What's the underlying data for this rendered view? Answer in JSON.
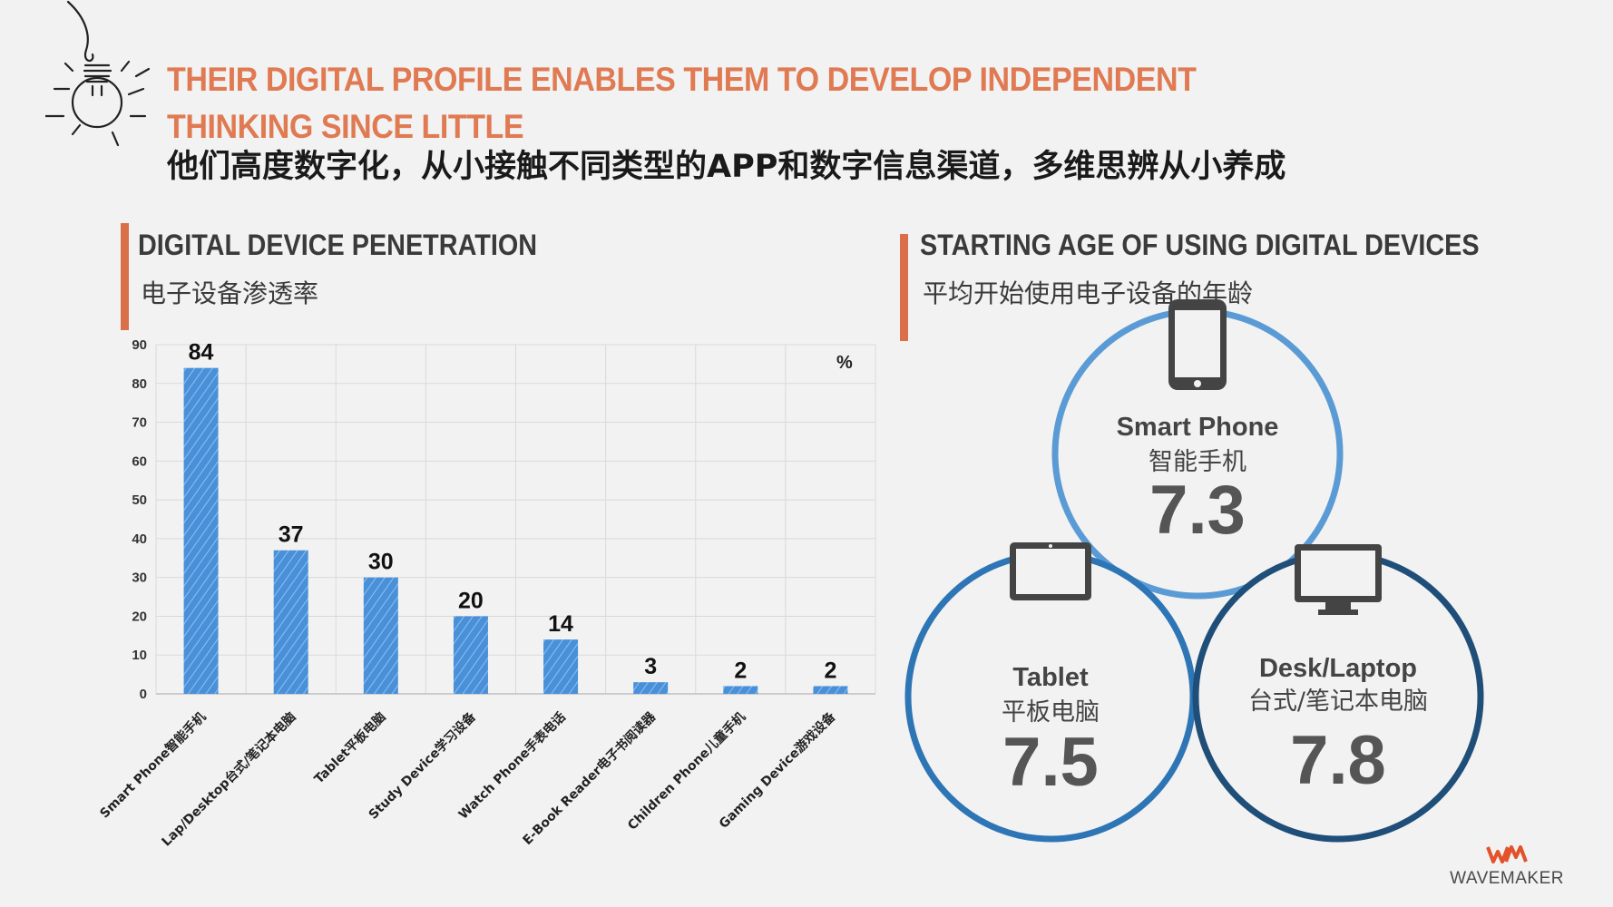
{
  "header": {
    "headline_en": "THEIR DIGITAL PROFILE ENABLES THEM TO DEVELOP INDEPENDENT THINKING SINCE LITTLE",
    "headline_cn": "他们高度数字化，从小接触不同类型的APP和数字信息渠道，多维思辨从小养成"
  },
  "left_section": {
    "title": "DIGITAL DEVICE PENETRATION",
    "subtitle": "电子设备渗透率"
  },
  "right_section": {
    "title": "STARTING AGE OF USING DIGITAL DEVICES",
    "subtitle": "平均开始使用电子设备的年龄",
    "devices": [
      {
        "label_en": "Smart Phone",
        "label_cn": "智能手机",
        "value": "7.3",
        "icon": "smartphone-icon",
        "color": "#5b9bd5"
      },
      {
        "label_en": "Tablet",
        "label_cn": "平板电脑",
        "value": "7.5",
        "icon": "tablet-icon",
        "color": "#2e75b6"
      },
      {
        "label_en": "Desk/Laptop",
        "label_cn": "台式/笔记本电脑",
        "value": "7.8",
        "icon": "desktop-icon",
        "color": "#1f4e79"
      }
    ]
  },
  "chart_data": {
    "type": "bar",
    "categories": [
      "Smart Phone智能手机",
      "Lap/Desktop台式/笔记本电脑",
      "Tablet平板电脑",
      "Study Device学习设备",
      "Watch Phone手表电话",
      "E-Book Reader电子书阅读器",
      "Children Phone儿童手机",
      "Gaming Device游戏设备"
    ],
    "values": [
      84,
      37,
      30,
      20,
      14,
      3,
      2,
      2
    ],
    "unit_label": "%",
    "ylim": [
      0,
      90
    ],
    "yticks": [
      0,
      10,
      20,
      30,
      40,
      50,
      60,
      70,
      80,
      90
    ],
    "grid": true,
    "bar_color": "#4a90d9"
  },
  "logo": {
    "text": "WAVEMAKER",
    "mark": "WM",
    "mark_color": "#e2522b"
  }
}
